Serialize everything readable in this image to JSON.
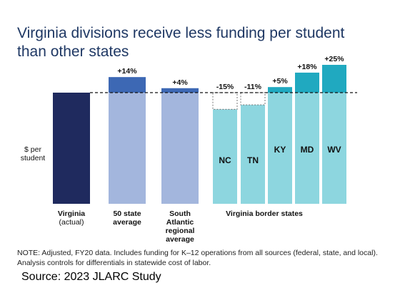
{
  "title_lines": [
    "Virginia divisions receive less funding per student",
    "than other states"
  ],
  "note": "NOTE: Adjusted, FY20 data. Includes funding for K–12 operations from all sources (federal, state, and local). Analysis controls for differentials in statewide cost of labor.",
  "source": "Source:  2023 JLARC Study",
  "colors": {
    "virginia": "#1f2a5e",
    "comparison_base": "#a3b6dd",
    "comparison_top": "#3d68b4",
    "border_base": "#8dd6df",
    "border_top": "#20a9c0",
    "reference_line": "#111111"
  },
  "chart_data": {
    "type": "bar",
    "ylabel": "$ per student",
    "ylabel_lines": [
      "$ per",
      "student"
    ],
    "baseline_label": "Virginia (actual)",
    "group_label": "Virginia border states",
    "categories": [
      "Virginia",
      "50 state average",
      "South Atlantic regional average",
      "NC",
      "TN",
      "KY",
      "MD",
      "WV"
    ],
    "values_pct_vs_virginia": [
      0,
      14,
      4,
      -15,
      -11,
      5,
      18,
      25
    ],
    "bars": [
      {
        "key": "virginia",
        "group": "virginia",
        "pct": 0,
        "pct_label": "",
        "inner_label": "",
        "label_lines": [
          "Virginia",
          "(actual)"
        ],
        "bold_lines": 1
      },
      {
        "key": "fifty",
        "group": "comparison",
        "pct": 14,
        "pct_label": "+14%",
        "inner_label": "",
        "label_lines": [
          "50 state",
          "average"
        ],
        "bold_lines": 2
      },
      {
        "key": "satl",
        "group": "comparison",
        "pct": 4,
        "pct_label": "+4%",
        "inner_label": "",
        "label_lines": [
          "South",
          "Atlantic",
          "regional",
          "average"
        ],
        "bold_lines": 4
      },
      {
        "key": "nc",
        "group": "border",
        "pct": -15,
        "pct_label": "-15%",
        "inner_label": "NC",
        "label_lines": [],
        "bold_lines": 0
      },
      {
        "key": "tn",
        "group": "border",
        "pct": -11,
        "pct_label": "-11%",
        "inner_label": "TN",
        "label_lines": [],
        "bold_lines": 0
      },
      {
        "key": "ky",
        "group": "border",
        "pct": 5,
        "pct_label": "+5%",
        "inner_label": "KY",
        "label_lines": [],
        "bold_lines": 0
      },
      {
        "key": "md",
        "group": "border",
        "pct": 18,
        "pct_label": "+18%",
        "inner_label": "MD",
        "label_lines": [],
        "bold_lines": 0
      },
      {
        "key": "wv",
        "group": "border",
        "pct": 25,
        "pct_label": "+25%",
        "inner_label": "WV",
        "label_lines": [],
        "bold_lines": 0
      }
    ],
    "reference_line": "Virginia level (dashed)",
    "grid": false,
    "legend": "none"
  }
}
